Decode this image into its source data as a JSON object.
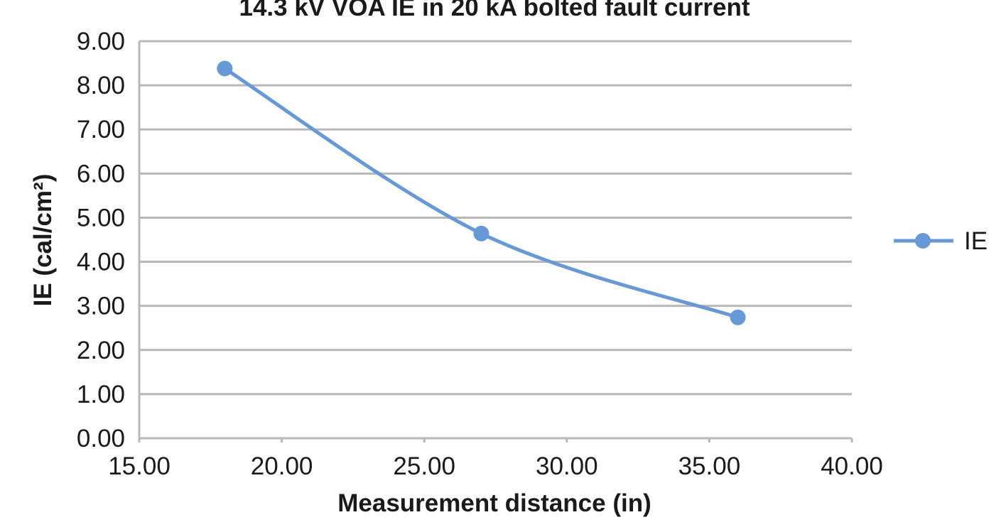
{
  "chart_data": {
    "type": "line",
    "title": "14.3 kV VOA IE in 20 kA bolted fault current",
    "xlabel": "Measurement distance (in)",
    "ylabel": "IE (cal/cm²)",
    "xlim": [
      15,
      40
    ],
    "ylim": [
      0,
      9
    ],
    "x_ticks": [
      "15.00",
      "20.00",
      "25.00",
      "30.00",
      "35.00",
      "40.00"
    ],
    "y_ticks": [
      "0.00",
      "1.00",
      "2.00",
      "3.00",
      "4.00",
      "5.00",
      "6.00",
      "7.00",
      "8.00",
      "9.00"
    ],
    "grid": "horizontal",
    "legend_position": "right",
    "series": [
      {
        "name": "IE",
        "color": "#6699d6",
        "smooth": true,
        "x": [
          18.0,
          27.0,
          36.0
        ],
        "y": [
          8.38,
          4.64,
          2.74
        ]
      }
    ]
  }
}
